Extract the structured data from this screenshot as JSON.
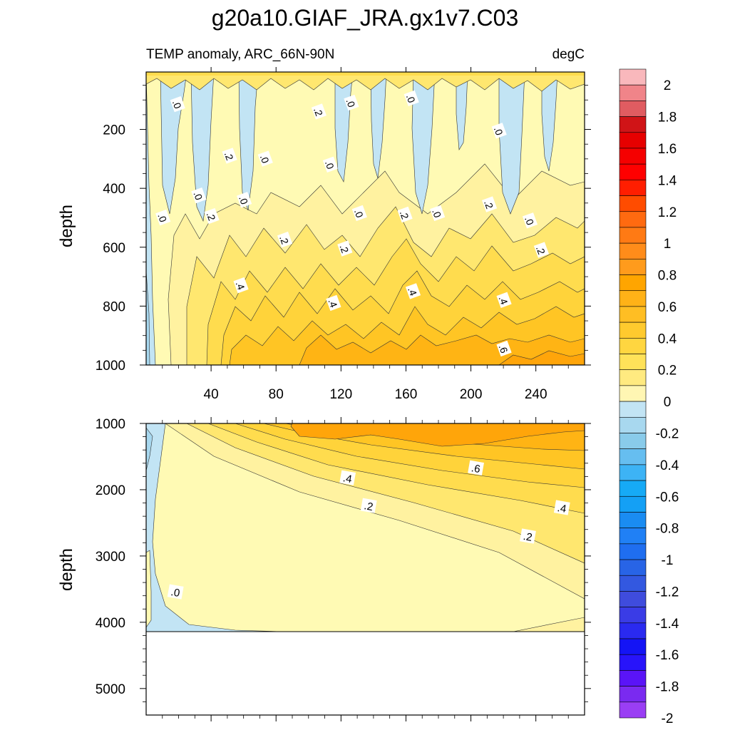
{
  "title": "g20a10.GIAF_JRA.gx1v7.C03",
  "chart_data": [
    {
      "type": "contour",
      "panel": "upper",
      "subtitle_left": "TEMP anomaly, ARC_66N-90N",
      "subtitle_right": "degC",
      "xlabel": "",
      "ylabel": "depth",
      "xlim": [
        0,
        270
      ],
      "ylim": [
        1000,
        5
      ],
      "xticks": [
        40,
        80,
        120,
        160,
        200,
        240
      ],
      "xtick_labels": [
        "40",
        "80",
        "120",
        "160",
        "200",
        "240"
      ],
      "yticks": [
        200,
        400,
        600,
        800,
        1000
      ],
      "ytick_labels": [
        "200",
        "400",
        "600",
        "800",
        "1000"
      ],
      "contour_labels": [
        {
          "text": ".0",
          "x": 19,
          "y": 115
        },
        {
          "text": ".2",
          "x": 106,
          "y": 140
        },
        {
          "text": ".0",
          "x": 126,
          "y": 110
        },
        {
          "text": ".0",
          "x": 163,
          "y": 95
        },
        {
          "text": ".2",
          "x": 51,
          "y": 290
        },
        {
          "text": ".0",
          "x": 73,
          "y": 300
        },
        {
          "text": ".0",
          "x": 113,
          "y": 320
        },
        {
          "text": ".0",
          "x": 217,
          "y": 205
        },
        {
          "text": ".0",
          "x": 32,
          "y": 425
        },
        {
          "text": ".0",
          "x": 60,
          "y": 440
        },
        {
          "text": ".0",
          "x": 10,
          "y": 500
        },
        {
          "text": ".2",
          "x": 40,
          "y": 495
        },
        {
          "text": ".0",
          "x": 131,
          "y": 485
        },
        {
          "text": ".2",
          "x": 159,
          "y": 490
        },
        {
          "text": ".0",
          "x": 179,
          "y": 485
        },
        {
          "text": ".2",
          "x": 211,
          "y": 455
        },
        {
          "text": ".0",
          "x": 236,
          "y": 510
        },
        {
          "text": ".2",
          "x": 85,
          "y": 575
        },
        {
          "text": ".2",
          "x": 122,
          "y": 605
        },
        {
          "text": ".2",
          "x": 243,
          "y": 610
        },
        {
          "text": ".4",
          "x": 58,
          "y": 730
        },
        {
          "text": ".4",
          "x": 115,
          "y": 790
        },
        {
          "text": ".4",
          "x": 164,
          "y": 750
        },
        {
          "text": ".4",
          "x": 220,
          "y": 780
        },
        {
          "text": ".6",
          "x": 220,
          "y": 945
        }
      ],
      "approx_field_range": [
        -0.2,
        0.7
      ]
    },
    {
      "type": "contour",
      "panel": "lower",
      "xlabel": "",
      "ylabel": "depth",
      "xlim": [
        0,
        270
      ],
      "ylim": [
        5400,
        1000
      ],
      "yticks": [
        1000,
        2000,
        3000,
        4000,
        5000
      ],
      "ytick_labels": [
        "1000",
        "2000",
        "3000",
        "4000",
        "5000"
      ],
      "bottom_of_data": 4130,
      "contour_labels": [
        {
          "text": ".4",
          "x": 124,
          "y": 1830
        },
        {
          "text": ".6",
          "x": 203,
          "y": 1680
        },
        {
          "text": ".2",
          "x": 137,
          "y": 2250
        },
        {
          "text": ".4",
          "x": 256,
          "y": 2280
        },
        {
          "text": ".2",
          "x": 235,
          "y": 2710
        },
        {
          "text": ".0",
          "x": 18,
          "y": 3550
        }
      ],
      "approx_field_range": [
        -0.1,
        0.75
      ]
    }
  ],
  "colorbar": {
    "labels": [
      "2",
      "1.8",
      "1.6",
      "1.4",
      "1.2",
      "1",
      "0.8",
      "0.6",
      "0.4",
      "0.2",
      "0",
      "-0.2",
      "-0.4",
      "-0.6",
      "-0.8",
      "-1",
      "-1.2",
      "-1.4",
      "-1.6",
      "-1.8",
      "-2"
    ],
    "colors": [
      "#F9B8BC",
      "#F08489",
      "#E05C61",
      "#D01417",
      "#E60000",
      "#F50000",
      "#FF0000",
      "#FF1E00",
      "#FF4C00",
      "#FF6A10",
      "#FF7A14",
      "#FF8C1A",
      "#FF9B1C",
      "#FFA500",
      "#FFB217",
      "#FFBE23",
      "#FFCA2E",
      "#FFD640",
      "#FFE259",
      "#FFEA80",
      "#FFF6B3",
      "#C2E4F4",
      "#A8D8EF",
      "#89CBEA",
      "#66BEF0",
      "#3DB3F5",
      "#16AAF6",
      "#14A0F5",
      "#1A8CF2",
      "#2080F5",
      "#1F6EF0",
      "#2864E6",
      "#3358E0",
      "#3F4CDD",
      "#3A3CE6",
      "#2A2AF0",
      "#1414F5",
      "#2814FA",
      "#5A14F7",
      "#7A2AF0",
      "#9A3EF4"
    ]
  },
  "field_colors": {
    "neg_0_2": "#C2E4F4",
    "neg_0_4": "#A8D8EF",
    "pos_0": "#FFFAB4",
    "pos_0_1": "#FFF2A0",
    "pos_0_2": "#FFE76F",
    "pos_0_3": "#FFDC4E",
    "pos_0_4": "#FFD33A",
    "pos_0_5": "#FFC524",
    "pos_0_6": "#FFB414",
    "pos_0_7": "#FFA50A"
  }
}
